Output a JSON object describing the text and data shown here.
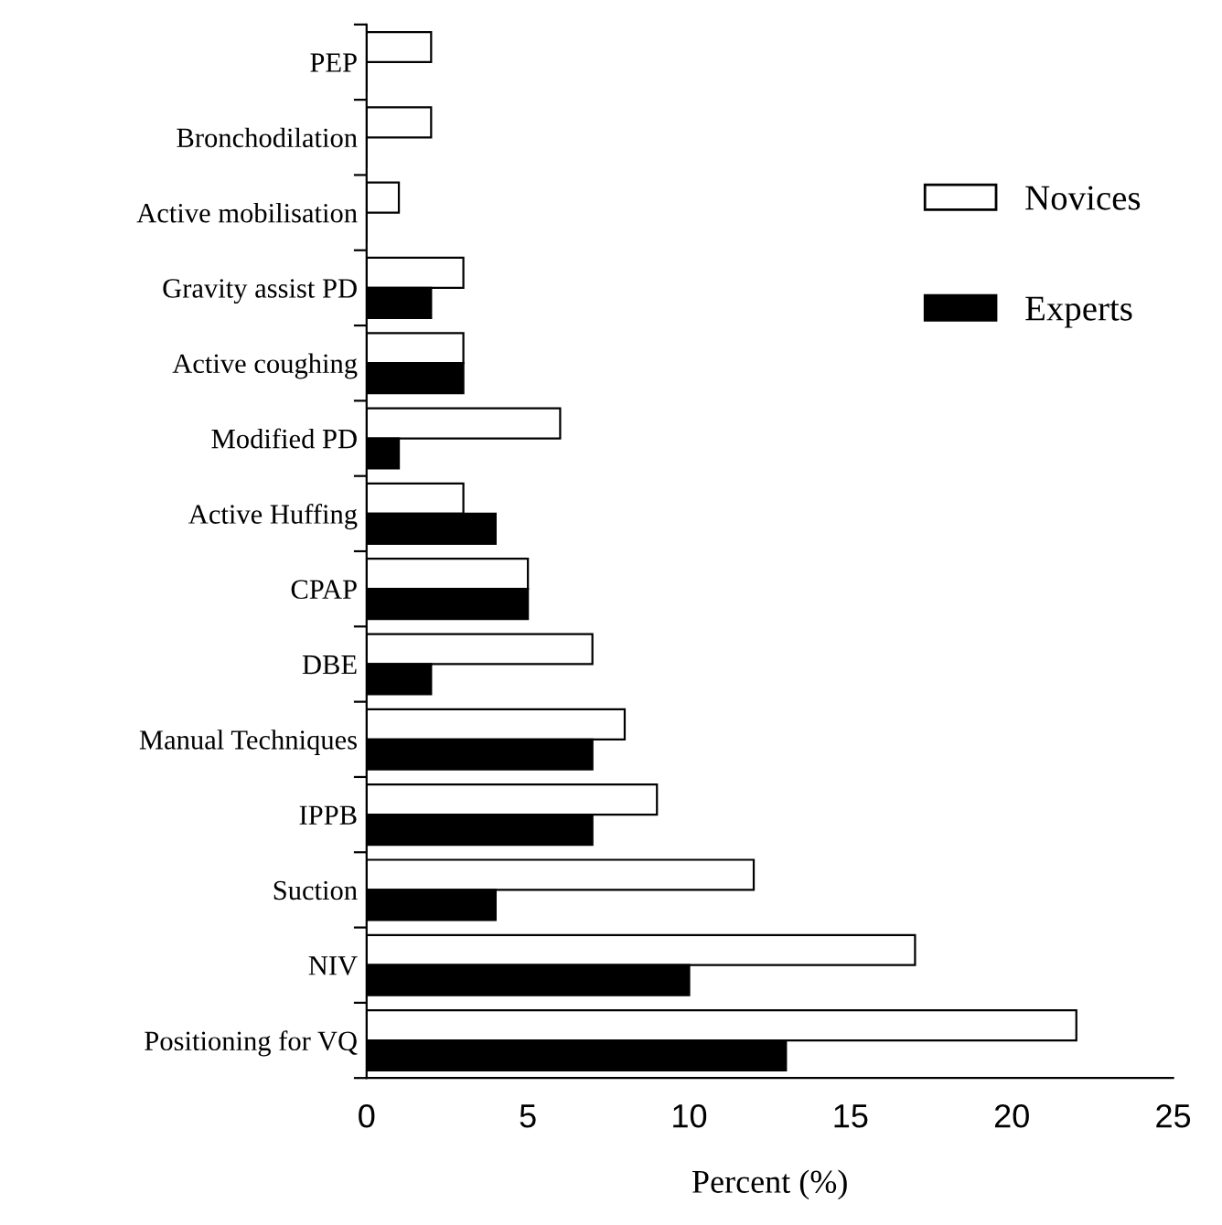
{
  "chart_data": {
    "type": "bar",
    "orientation": "horizontal",
    "xlabel": "Percent (%)",
    "categories": [
      "PEP",
      "Bronchodilation",
      "Active mobilisation",
      "Gravity assist PD",
      "Active coughing",
      "Modified PD",
      "Active Huffing",
      "CPAP",
      "DBE",
      "Manual Techniques",
      "IPPB",
      "Suction",
      "NIV",
      "Positioning for VQ"
    ],
    "series": [
      {
        "name": "Novices",
        "color": "#ffffff",
        "values": [
          2,
          2,
          1,
          3,
          3,
          6,
          3,
          5,
          7,
          8,
          9,
          12,
          17,
          22
        ]
      },
      {
        "name": "Experts",
        "color": "#000000",
        "values": [
          0,
          0,
          0,
          2,
          3,
          1,
          4,
          5,
          2,
          7,
          7,
          4,
          10,
          13
        ]
      }
    ],
    "xlim": [
      0,
      25
    ],
    "xticks": [
      0,
      5,
      10,
      15,
      20,
      25
    ],
    "grid": false,
    "legend": "right"
  }
}
